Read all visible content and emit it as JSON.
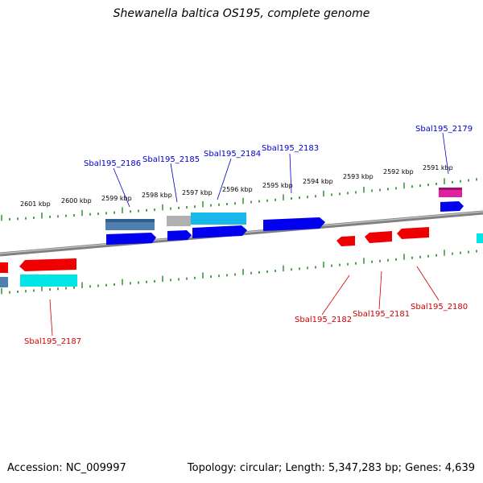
{
  "title": "Shewanella baltica OS195, complete genome",
  "footer": {
    "accession": "Accession: NC_009997",
    "summary": "Topology: circular; Length: 5,347,283 bp; Genes: 4,639"
  },
  "colors": {
    "forward_label": "#0000cc",
    "reverse_label": "#cc0000",
    "tick": "#228b22",
    "backbone": "#808080"
  },
  "scale_labels": [
    "2601 kbp",
    "2600 kbp",
    "2599 kbp",
    "2598 kbp",
    "2597 kbp",
    "2596 kbp",
    "2595 kbp",
    "2594 kbp",
    "2593 kbp",
    "2592 kbp",
    "2591 kbp"
  ],
  "gene_labels": {
    "forward": [
      "Sbal195_2186",
      "Sbal195_2185",
      "Sbal195_2184",
      "Sbal195_2183",
      "Sbal195_2179"
    ],
    "reverse": [
      "Sbal195_2187",
      "Sbal195_2182",
      "Sbal195_2181",
      "Sbal195_2180"
    ]
  }
}
